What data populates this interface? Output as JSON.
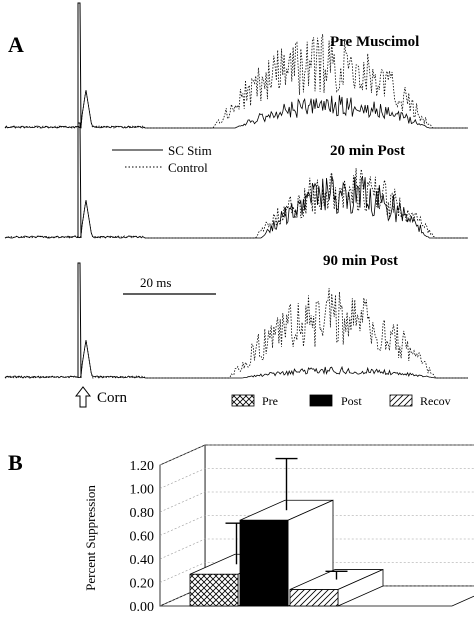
{
  "panel_a": {
    "letter": "A",
    "traces": [
      {
        "label": "Pre Muscimol"
      },
      {
        "label": "20 min Post"
      },
      {
        "label": "90 min Post"
      }
    ],
    "legend": [
      {
        "name": "SC Stim",
        "style": "solid"
      },
      {
        "name": "Control",
        "style": "dotted"
      }
    ],
    "scale_bar": "20 ms",
    "stimulus_marker": "Corn"
  },
  "panel_b": {
    "letter": "B"
  },
  "chart_data": {
    "type": "bar",
    "style": "3d",
    "ylabel": "Percent Suppression",
    "ylim": [
      0,
      1.2
    ],
    "yticks": [
      "0.00",
      "0.20",
      "0.40",
      "0.60",
      "0.80",
      "1.00",
      "1.20"
    ],
    "grid": true,
    "legend_placement": "top",
    "series": [
      {
        "name": "Pre",
        "value": 0.27,
        "error": 0.35,
        "pattern": "crosshatch"
      },
      {
        "name": "Post",
        "value": 0.73,
        "error": 0.44,
        "pattern": "solid-black"
      },
      {
        "name": "Recov",
        "value": 0.14,
        "error": 0.07,
        "pattern": "diagonal-hatch"
      }
    ]
  },
  "colors": {
    "ink": "#000000",
    "grid": "#9a9a9a",
    "background": "#ffffff"
  }
}
